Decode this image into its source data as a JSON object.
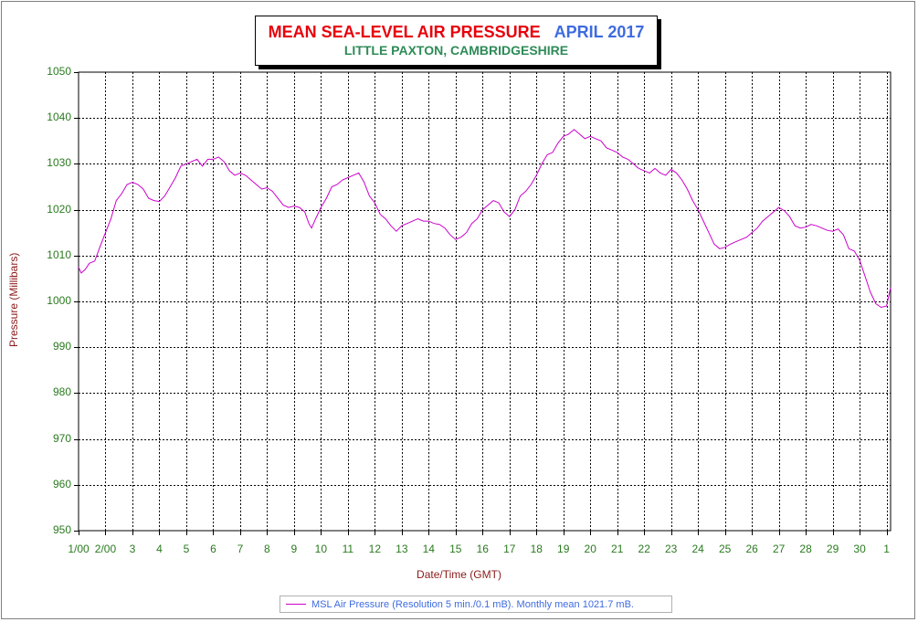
{
  "title": {
    "main": "MEAN SEA-LEVEL AIR PRESSURE",
    "month": "APRIL 2017",
    "location": "LITTLE PAXTON, CAMBRIDGESHIRE"
  },
  "colors": {
    "line": "#cc00cc",
    "grid": "#000000",
    "tick_text": "#2a7a1f",
    "axis_title": "#8b1a1a",
    "title_main": "#e8000b",
    "title_month": "#3d6be0",
    "title_location": "#2e8b57",
    "legend_text": "#3d6be0"
  },
  "legend": {
    "text": "MSL Air Pressure (Resolution 5 min./0.1 mB). Monthly mean 1021.7 mB."
  },
  "chart_data": {
    "type": "line",
    "xlabel": "Date/Time (GMT)",
    "ylabel": "Pressure (Millibars)",
    "ylim": [
      950,
      1050
    ],
    "xlim": [
      1,
      31.15
    ],
    "grid": true,
    "legend_position": "bottom-center",
    "x_ticks": [
      {
        "x": 1,
        "label": "1/00"
      },
      {
        "x": 2,
        "label": "2/00"
      },
      {
        "x": 3,
        "label": "3"
      },
      {
        "x": 4,
        "label": "4"
      },
      {
        "x": 5,
        "label": "5"
      },
      {
        "x": 6,
        "label": "6"
      },
      {
        "x": 7,
        "label": "7"
      },
      {
        "x": 8,
        "label": "8"
      },
      {
        "x": 9,
        "label": "9"
      },
      {
        "x": 10,
        "label": "10"
      },
      {
        "x": 11,
        "label": "11"
      },
      {
        "x": 12,
        "label": "12"
      },
      {
        "x": 13,
        "label": "13"
      },
      {
        "x": 14,
        "label": "14"
      },
      {
        "x": 15,
        "label": "15"
      },
      {
        "x": 16,
        "label": "16"
      },
      {
        "x": 17,
        "label": "17"
      },
      {
        "x": 18,
        "label": "18"
      },
      {
        "x": 19,
        "label": "19"
      },
      {
        "x": 20,
        "label": "20"
      },
      {
        "x": 21,
        "label": "21"
      },
      {
        "x": 22,
        "label": "22"
      },
      {
        "x": 23,
        "label": "23"
      },
      {
        "x": 24,
        "label": "24"
      },
      {
        "x": 25,
        "label": "25"
      },
      {
        "x": 26,
        "label": "26"
      },
      {
        "x": 27,
        "label": "27"
      },
      {
        "x": 28,
        "label": "28"
      },
      {
        "x": 29,
        "label": "29"
      },
      {
        "x": 30,
        "label": "30"
      },
      {
        "x": 31,
        "label": "1"
      }
    ],
    "y_ticks": [
      950,
      960,
      970,
      980,
      990,
      1000,
      1010,
      1020,
      1030,
      1040,
      1050
    ],
    "series": [
      {
        "name": "MSL Air Pressure",
        "points": [
          [
            1.0,
            1007.5
          ],
          [
            1.1,
            1006.2
          ],
          [
            1.25,
            1007.0
          ],
          [
            1.4,
            1008.3
          ],
          [
            1.6,
            1008.8
          ],
          [
            1.8,
            1012.0
          ],
          [
            2.0,
            1015.0
          ],
          [
            2.2,
            1018.0
          ],
          [
            2.4,
            1022.0
          ],
          [
            2.6,
            1023.5
          ],
          [
            2.8,
            1025.5
          ],
          [
            3.0,
            1026.0
          ],
          [
            3.2,
            1025.5
          ],
          [
            3.4,
            1024.5
          ],
          [
            3.6,
            1022.5
          ],
          [
            3.8,
            1022.0
          ],
          [
            4.0,
            1021.8
          ],
          [
            4.2,
            1023.0
          ],
          [
            4.4,
            1025.0
          ],
          [
            4.6,
            1027.0
          ],
          [
            4.8,
            1029.5
          ],
          [
            5.0,
            1030.0
          ],
          [
            5.2,
            1030.5
          ],
          [
            5.4,
            1031.0
          ],
          [
            5.6,
            1029.5
          ],
          [
            5.8,
            1031.0
          ],
          [
            6.0,
            1031.0
          ],
          [
            6.2,
            1031.5
          ],
          [
            6.4,
            1030.5
          ],
          [
            6.6,
            1028.5
          ],
          [
            6.8,
            1027.5
          ],
          [
            7.0,
            1028.0
          ],
          [
            7.2,
            1027.5
          ],
          [
            7.4,
            1026.5
          ],
          [
            7.6,
            1025.5
          ],
          [
            7.8,
            1024.5
          ],
          [
            8.0,
            1024.8
          ],
          [
            8.2,
            1024.0
          ],
          [
            8.4,
            1022.5
          ],
          [
            8.6,
            1021.0
          ],
          [
            8.8,
            1020.5
          ],
          [
            9.0,
            1020.8
          ],
          [
            9.2,
            1020.5
          ],
          [
            9.4,
            1019.5
          ],
          [
            9.55,
            1017.0
          ],
          [
            9.65,
            1016.0
          ],
          [
            9.8,
            1018.0
          ],
          [
            10.0,
            1020.5
          ],
          [
            10.2,
            1022.5
          ],
          [
            10.4,
            1025.0
          ],
          [
            10.6,
            1025.5
          ],
          [
            10.8,
            1026.5
          ],
          [
            11.0,
            1027.0
          ],
          [
            11.2,
            1027.5
          ],
          [
            11.4,
            1028.0
          ],
          [
            11.6,
            1026.0
          ],
          [
            11.8,
            1023.0
          ],
          [
            12.0,
            1021.5
          ],
          [
            12.2,
            1019.0
          ],
          [
            12.4,
            1018.0
          ],
          [
            12.6,
            1016.5
          ],
          [
            12.8,
            1015.3
          ],
          [
            13.0,
            1016.5
          ],
          [
            13.2,
            1017.0
          ],
          [
            13.4,
            1017.5
          ],
          [
            13.6,
            1018.0
          ],
          [
            13.8,
            1017.5
          ],
          [
            14.0,
            1017.5
          ],
          [
            14.2,
            1017.0
          ],
          [
            14.4,
            1016.8
          ],
          [
            14.6,
            1016.0
          ],
          [
            14.8,
            1014.5
          ],
          [
            15.0,
            1013.5
          ],
          [
            15.2,
            1014.0
          ],
          [
            15.4,
            1015.0
          ],
          [
            15.6,
            1017.0
          ],
          [
            15.8,
            1018.0
          ],
          [
            16.0,
            1020.0
          ],
          [
            16.2,
            1021.0
          ],
          [
            16.4,
            1022.0
          ],
          [
            16.6,
            1021.5
          ],
          [
            16.8,
            1019.5
          ],
          [
            17.0,
            1018.5
          ],
          [
            17.2,
            1020.0
          ],
          [
            17.4,
            1023.0
          ],
          [
            17.6,
            1024.0
          ],
          [
            17.8,
            1025.5
          ],
          [
            18.0,
            1027.5
          ],
          [
            18.2,
            1030.0
          ],
          [
            18.4,
            1032.0
          ],
          [
            18.6,
            1032.5
          ],
          [
            18.8,
            1034.5
          ],
          [
            19.0,
            1036.0
          ],
          [
            19.2,
            1036.5
          ],
          [
            19.4,
            1037.5
          ],
          [
            19.6,
            1036.5
          ],
          [
            19.8,
            1035.5
          ],
          [
            20.0,
            1036.0
          ],
          [
            20.2,
            1035.5
          ],
          [
            20.4,
            1035.0
          ],
          [
            20.6,
            1033.5
          ],
          [
            20.8,
            1033.0
          ],
          [
            21.0,
            1032.5
          ],
          [
            21.2,
            1031.5
          ],
          [
            21.4,
            1031.0
          ],
          [
            21.6,
            1030.0
          ],
          [
            21.8,
            1029.0
          ],
          [
            22.0,
            1028.5
          ],
          [
            22.2,
            1028.0
          ],
          [
            22.4,
            1029.0
          ],
          [
            22.6,
            1028.0
          ],
          [
            22.8,
            1027.5
          ],
          [
            23.0,
            1028.8
          ],
          [
            23.2,
            1028.0
          ],
          [
            23.4,
            1026.5
          ],
          [
            23.6,
            1024.5
          ],
          [
            23.8,
            1022.0
          ],
          [
            24.0,
            1020.0
          ],
          [
            24.2,
            1017.5
          ],
          [
            24.4,
            1015.0
          ],
          [
            24.6,
            1012.5
          ],
          [
            24.8,
            1011.5
          ],
          [
            25.0,
            1011.8
          ],
          [
            25.2,
            1012.5
          ],
          [
            25.4,
            1013.0
          ],
          [
            25.6,
            1013.5
          ],
          [
            25.8,
            1014.0
          ],
          [
            26.0,
            1015.0
          ],
          [
            26.2,
            1016.0
          ],
          [
            26.4,
            1017.5
          ],
          [
            26.6,
            1018.5
          ],
          [
            26.8,
            1019.5
          ],
          [
            27.0,
            1020.5
          ],
          [
            27.2,
            1019.8
          ],
          [
            27.4,
            1018.5
          ],
          [
            27.6,
            1016.5
          ],
          [
            27.8,
            1016.0
          ],
          [
            28.0,
            1016.2
          ],
          [
            28.2,
            1016.8
          ],
          [
            28.4,
            1016.5
          ],
          [
            28.6,
            1016.0
          ],
          [
            28.8,
            1015.5
          ],
          [
            29.0,
            1015.3
          ],
          [
            29.2,
            1015.8
          ],
          [
            29.4,
            1014.5
          ],
          [
            29.6,
            1011.5
          ],
          [
            29.8,
            1011.0
          ],
          [
            30.0,
            1009.0
          ],
          [
            30.2,
            1005.5
          ],
          [
            30.4,
            1002.0
          ],
          [
            30.6,
            999.5
          ],
          [
            30.8,
            998.7
          ],
          [
            31.0,
            999.0
          ],
          [
            31.15,
            1003.0
          ]
        ]
      }
    ]
  }
}
